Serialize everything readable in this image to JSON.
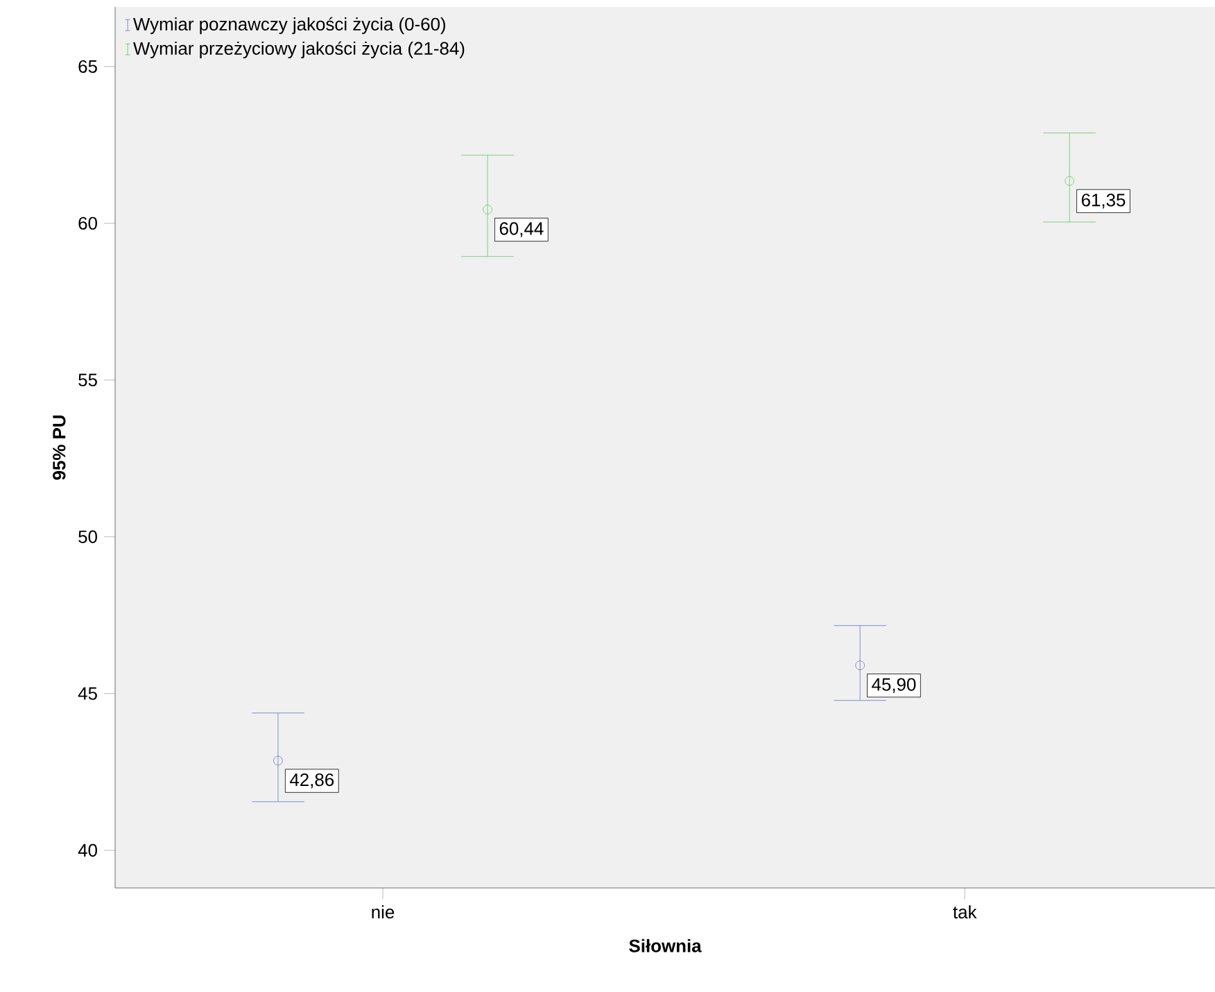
{
  "chart_data": {
    "type": "scatter",
    "xlabel": "Siłownia",
    "ylabel": "95% PU",
    "categories": [
      "nie",
      "tak"
    ],
    "ylim": [
      38.8,
      66.9
    ],
    "yticks": [
      40,
      45,
      50,
      55,
      60,
      65
    ],
    "legend": "top left",
    "marker": "circle",
    "series": [
      {
        "name": "Wymiar poznawczy jakości życia (0-60)",
        "color": "#6672c4",
        "values": [
          42.86,
          45.9
        ],
        "value_labels": [
          "42,86",
          "45,90"
        ],
        "errors": [
          [
            41.55,
            44.38
          ],
          [
            44.78,
            47.17
          ]
        ]
      },
      {
        "name": "Wymiar przeżyciowy jakości życia (21-84)",
        "color": "#5ec468",
        "values": [
          60.44,
          61.35
        ],
        "value_labels": [
          "60,44",
          "61,35"
        ],
        "errors": [
          [
            58.94,
            62.17
          ],
          [
            60.04,
            62.88
          ]
        ]
      }
    ]
  }
}
